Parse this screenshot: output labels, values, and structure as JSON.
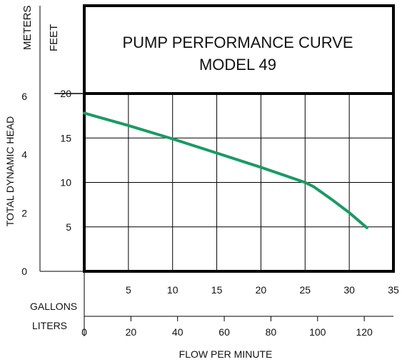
{
  "chart_data": {
    "type": "line",
    "title": "PUMP PERFORMANCE CURVE",
    "subtitle": "MODEL 49",
    "xlabel": "FLOW PER MINUTE",
    "ylabel": "TOTAL DYNAMIC HEAD",
    "x_axis": {
      "unit_label": "GALLONS",
      "lim": [
        0,
        35
      ],
      "ticks": [
        5,
        10,
        15,
        20,
        25,
        30,
        35
      ]
    },
    "x_axis_secondary": {
      "unit_label": "LITERS",
      "lim": [
        0,
        132.5
      ],
      "ticks": [
        0,
        20,
        40,
        60,
        80,
        100,
        120
      ]
    },
    "y_axis": {
      "unit_label": "FEET",
      "lim": [
        0,
        20
      ],
      "ticks": [
        5,
        10,
        15,
        20
      ]
    },
    "y_axis_secondary": {
      "unit_label": "METERS",
      "lim": [
        0,
        6.1
      ],
      "ticks": [
        0,
        2,
        4,
        6
      ]
    },
    "grid": true,
    "colors": {
      "curve": "#1a9a63",
      "frame": "#000000",
      "grid": "#000000"
    },
    "series": [
      {
        "x": [
          0,
          5,
          10,
          15,
          20,
          25,
          26,
          28,
          30,
          32
        ],
        "y": [
          17.8,
          16.4,
          14.9,
          13.3,
          11.7,
          10.0,
          9.5,
          8.1,
          6.6,
          4.9
        ]
      }
    ]
  }
}
